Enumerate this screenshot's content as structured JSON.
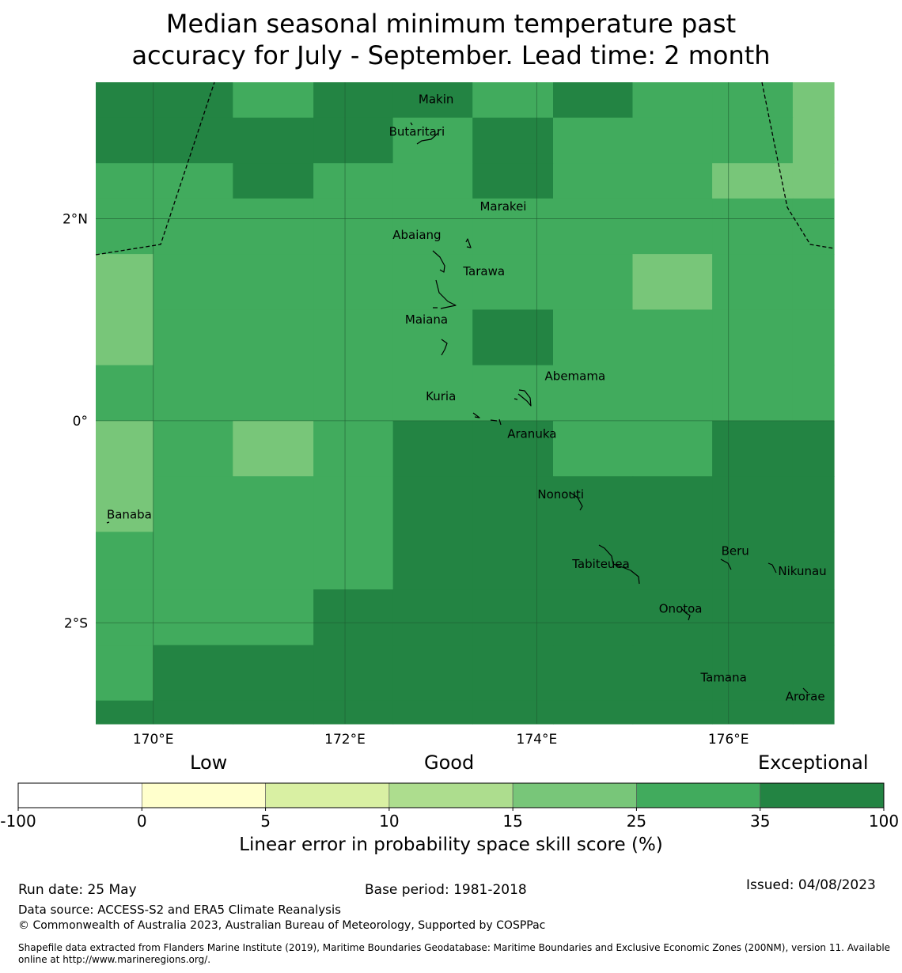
{
  "title_line1": "Median seasonal minimum temperature past",
  "title_line2": "accuracy for July - September. Lead time: 2 month",
  "map": {
    "lon_range": [
      169.4,
      177.1
    ],
    "lat_range": [
      -3.0,
      3.35
    ],
    "lon_ticks": [
      {
        "value": 170,
        "label": "170°E"
      },
      {
        "value": 172,
        "label": "172°E"
      },
      {
        "value": 174,
        "label": "174°E"
      },
      {
        "value": 176,
        "label": "176°E"
      }
    ],
    "lat_ticks": [
      {
        "value": 2,
        "label": "2°N"
      },
      {
        "value": 0,
        "label": "0°"
      },
      {
        "value": -2,
        "label": "2°S"
      }
    ],
    "grid_lon_edges": [
      169.4,
      170.0,
      170.83,
      171.67,
      172.5,
      173.33,
      174.17,
      175.0,
      175.83,
      176.67,
      177.1
    ],
    "grid_lat_edges": [
      3.35,
      3.0,
      2.55,
      2.2,
      1.65,
      1.1,
      0.55,
      0.0,
      -0.55,
      -1.1,
      -1.67,
      -2.22,
      -2.77,
      -3.0
    ],
    "grid_categories": [
      [
        6,
        6,
        5,
        6,
        6,
        5,
        6,
        5,
        5,
        4
      ],
      [
        6,
        6,
        6,
        6,
        5,
        6,
        5,
        5,
        5,
        4
      ],
      [
        5,
        5,
        6,
        5,
        5,
        6,
        5,
        5,
        4,
        4
      ],
      [
        5,
        5,
        5,
        5,
        5,
        5,
        5,
        5,
        5,
        5
      ],
      [
        4,
        5,
        5,
        5,
        5,
        5,
        5,
        4,
        5,
        5
      ],
      [
        4,
        5,
        5,
        5,
        5,
        6,
        5,
        5,
        5,
        5
      ],
      [
        5,
        5,
        5,
        5,
        5,
        5,
        5,
        5,
        5,
        5
      ],
      [
        4,
        5,
        4,
        5,
        6,
        6,
        5,
        5,
        6,
        6
      ],
      [
        4,
        5,
        5,
        5,
        6,
        6,
        6,
        6,
        6,
        6
      ],
      [
        5,
        5,
        5,
        5,
        6,
        6,
        6,
        6,
        6,
        6
      ],
      [
        5,
        5,
        5,
        6,
        6,
        6,
        6,
        6,
        6,
        6
      ],
      [
        5,
        6,
        6,
        6,
        6,
        6,
        6,
        6,
        6,
        6
      ],
      [
        6,
        6,
        6,
        6,
        6,
        6,
        6,
        6,
        6,
        6
      ]
    ],
    "islands": [
      {
        "name": "Makin",
        "lon": 172.95,
        "lat": 3.18
      },
      {
        "name": "Butaritari",
        "lon": 172.75,
        "lat": 2.86
      },
      {
        "name": "Marakei",
        "lon": 173.65,
        "lat": 2.12
      },
      {
        "name": "Abaiang",
        "lon": 172.75,
        "lat": 1.84
      },
      {
        "name": "Tarawa",
        "lon": 173.45,
        "lat": 1.48
      },
      {
        "name": "Maiana",
        "lon": 172.85,
        "lat": 1.0
      },
      {
        "name": "Abemama",
        "lon": 174.4,
        "lat": 0.44
      },
      {
        "name": "Kuria",
        "lon": 173.0,
        "lat": 0.24
      },
      {
        "name": "Aranuka",
        "lon": 173.95,
        "lat": -0.13
      },
      {
        "name": "Nonouti",
        "lon": 174.25,
        "lat": -0.73
      },
      {
        "name": "Banaba",
        "lon": 169.75,
        "lat": -0.93
      },
      {
        "name": "Beru",
        "lon": 176.07,
        "lat": -1.29
      },
      {
        "name": "Tabiteuea",
        "lon": 174.67,
        "lat": -1.42
      },
      {
        "name": "Nikunau",
        "lon": 176.77,
        "lat": -1.49
      },
      {
        "name": "Onotoa",
        "lon": 175.5,
        "lat": -1.86
      },
      {
        "name": "Tamana",
        "lon": 175.95,
        "lat": -2.54
      },
      {
        "name": "Arorae",
        "lon": 176.8,
        "lat": -2.73
      }
    ]
  },
  "legend": {
    "group_labels": {
      "low": "Low",
      "good": "Good",
      "exceptional": "Exceptional"
    },
    "title": "Linear error in probability space skill score (%)",
    "bins": [
      {
        "from": "-100",
        "to": "0",
        "color": "#ffffff"
      },
      {
        "from": "0",
        "to": "5",
        "color": "#ffffcc"
      },
      {
        "from": "5",
        "to": "10",
        "color": "#d9f0a3"
      },
      {
        "from": "10",
        "to": "15",
        "color": "#addd8e"
      },
      {
        "from": "15",
        "to": "25",
        "color": "#78c679"
      },
      {
        "from": "25",
        "to": "35",
        "color": "#41ab5d"
      },
      {
        "from": "35",
        "to": "100",
        "color": "#238443"
      }
    ],
    "tick_labels": [
      "-100",
      "0",
      "5",
      "10",
      "15",
      "25",
      "35",
      "100"
    ]
  },
  "footer": {
    "run_date": "Run date: 25 May",
    "base_period": "Base period: 1981-2018",
    "issued": "Issued: 04/08/2023",
    "data_source": "Data source: ACCESS-S2 and ERA5 Climate Reanalysis",
    "copyright": "© Commonwealth of Australia 2023, Australian Bureau of Meteorology, Supported by COSPPac",
    "shapefile": "Shapefile data extracted from Flanders Marine Institute (2019), Maritime Boundaries Geodatabase: Maritime Boundaries and Exclusive Economic Zones (200NM), version 11. Available online at http://www.marineregions.org/."
  }
}
